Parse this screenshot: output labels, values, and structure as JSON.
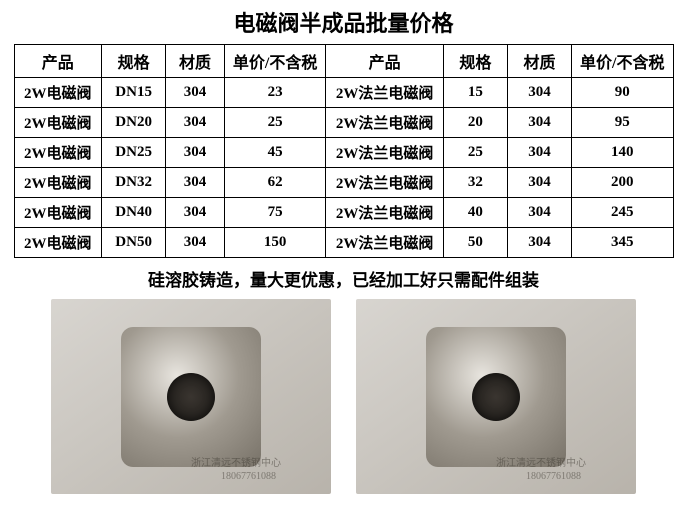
{
  "title": "电磁阀半成品批量价格",
  "headers": {
    "product1": "产品",
    "spec1": "规格",
    "material1": "材质",
    "price1": "单价/不含税",
    "product2": "产品",
    "spec2": "规格",
    "material2": "材质",
    "price2": "单价/不含税"
  },
  "rows": [
    {
      "product1": "2W电磁阀",
      "spec1": "DN15",
      "material1": "304",
      "price1": "23",
      "product2": "2W法兰电磁阀",
      "spec2": "15",
      "material2": "304",
      "price2": "90"
    },
    {
      "product1": "2W电磁阀",
      "spec1": "DN20",
      "material1": "304",
      "price1": "25",
      "product2": "2W法兰电磁阀",
      "spec2": "20",
      "material2": "304",
      "price2": "95"
    },
    {
      "product1": "2W电磁阀",
      "spec1": "DN25",
      "material1": "304",
      "price1": "45",
      "product2": "2W法兰电磁阀",
      "spec2": "25",
      "material2": "304",
      "price2": "140"
    },
    {
      "product1": "2W电磁阀",
      "spec1": "DN32",
      "material1": "304",
      "price1": "62",
      "product2": "2W法兰电磁阀",
      "spec2": "32",
      "material2": "304",
      "price2": "200"
    },
    {
      "product1": "2W电磁阀",
      "spec1": "DN40",
      "material1": "304",
      "price1": "75",
      "product2": "2W法兰电磁阀",
      "spec2": "40",
      "material2": "304",
      "price2": "245"
    },
    {
      "product1": "2W电磁阀",
      "spec1": "DN50",
      "material1": "304",
      "price1": "150",
      "product2": "2W法兰电磁阀",
      "spec2": "50",
      "material2": "304",
      "price2": "345"
    }
  ],
  "note": "硅溶胶铸造，量大更优惠，已经加工好只需配件组装",
  "watermark": {
    "text": "浙江清远不锈钢中心",
    "phone": "18067761088"
  }
}
